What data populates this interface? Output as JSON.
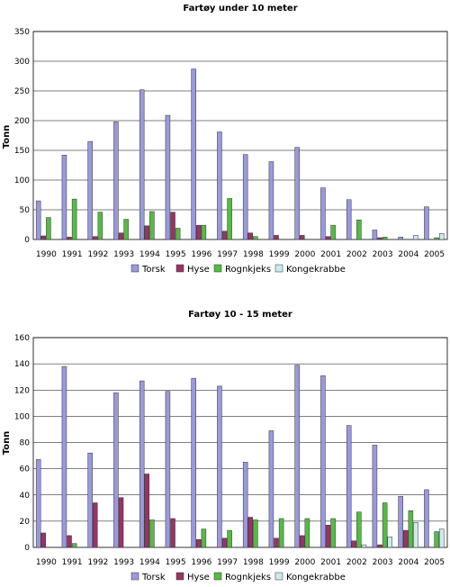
{
  "chart_data": [
    {
      "type": "bar",
      "title": "Fartøy under 10 meter",
      "ylabel": "Tonn",
      "xlabel": "",
      "ylim": [
        0,
        350
      ],
      "yticks": [
        0,
        50,
        100,
        150,
        200,
        250,
        300,
        350
      ],
      "grid": true,
      "legend": "bottom",
      "categories": [
        "1990",
        "1991",
        "1992",
        "1993",
        "1994",
        "1995",
        "1996",
        "1997",
        "1998",
        "1999",
        "2000",
        "2001",
        "2002",
        "2003",
        "2004",
        "2005"
      ],
      "series": [
        {
          "name": "Torsk",
          "color": "#9999dd",
          "values": [
            65,
            142,
            165,
            198,
            252,
            209,
            287,
            181,
            143,
            131,
            155,
            87,
            67,
            16,
            4,
            55
          ]
        },
        {
          "name": "Hyse",
          "color": "#993366",
          "values": [
            6,
            4,
            5,
            11,
            23,
            46,
            24,
            14,
            11,
            7,
            7,
            5,
            0,
            3,
            0,
            0
          ]
        },
        {
          "name": "Rognkjeks",
          "color": "#55bb44",
          "values": [
            37,
            68,
            46,
            34,
            47,
            19,
            24,
            69,
            5,
            0,
            0,
            24,
            33,
            4,
            0,
            3
          ]
        },
        {
          "name": "Kongekrabbe",
          "color": "#cce8f0",
          "values": [
            0,
            0,
            0,
            0,
            0,
            0,
            0,
            0,
            0,
            0,
            0,
            0,
            0,
            0,
            7,
            10
          ]
        }
      ]
    },
    {
      "type": "bar",
      "title": "Fartøy 10 - 15 meter",
      "ylabel": "Tonn",
      "xlabel": "",
      "ylim": [
        0,
        160
      ],
      "yticks": [
        0,
        20,
        40,
        60,
        80,
        100,
        120,
        140,
        160
      ],
      "grid": true,
      "legend": "bottom",
      "categories": [
        "1990",
        "1991",
        "1992",
        "1993",
        "1994",
        "1995",
        "1996",
        "1997",
        "1998",
        "1999",
        "2000",
        "2001",
        "2002",
        "2003",
        "2004",
        "2005"
      ],
      "series": [
        {
          "name": "Torsk",
          "color": "#9999dd",
          "values": [
            67,
            138,
            72,
            118,
            127,
            119,
            129,
            123,
            65,
            89,
            139,
            131,
            93,
            78,
            39,
            44
          ]
        },
        {
          "name": "Hyse",
          "color": "#993366",
          "values": [
            11,
            9,
            34,
            38,
            56,
            22,
            6,
            7,
            23,
            7,
            9,
            17,
            5,
            2,
            13,
            0
          ]
        },
        {
          "name": "Rognkjeks",
          "color": "#55bb44",
          "values": [
            0,
            3,
            0,
            0,
            21,
            0,
            14,
            13,
            21,
            22,
            22,
            22,
            27,
            34,
            28,
            12
          ]
        },
        {
          "name": "Kongekrabbe",
          "color": "#cce8f0",
          "values": [
            0,
            0,
            0,
            0,
            0,
            0,
            0,
            0,
            0,
            0,
            0,
            0,
            2,
            8,
            19,
            14
          ]
        }
      ]
    }
  ]
}
